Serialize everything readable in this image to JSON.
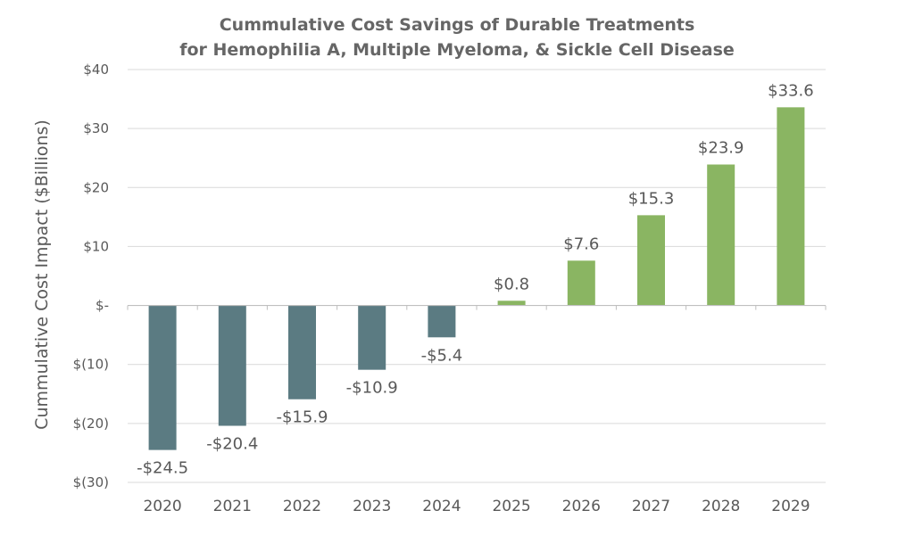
{
  "chart_data": {
    "type": "bar",
    "title_lines": [
      "Cummulative Cost Savings of Durable Treatments",
      "for Hemophilia A, Multiple Myeloma, & Sickle Cell Disease"
    ],
    "xlabel": "",
    "ylabel": "Cummulative Cost Impact ($Billions)",
    "categories": [
      "2020",
      "2021",
      "2022",
      "2023",
      "2024",
      "2025",
      "2026",
      "2027",
      "2028",
      "2029"
    ],
    "values": [
      -24.5,
      -20.4,
      -15.9,
      -10.9,
      -5.4,
      0.8,
      7.6,
      15.3,
      23.9,
      33.6
    ],
    "data_labels": [
      "-$24.5",
      "-$20.4",
      "-$15.9",
      "-$10.9",
      "-$5.4",
      "$0.8",
      "$7.6",
      "$15.3",
      "$23.9",
      "$33.6"
    ],
    "ylim": [
      -30,
      40
    ],
    "yticks": [
      40,
      30,
      20,
      10,
      0,
      -10,
      -20,
      -30
    ],
    "ytick_labels": [
      "$40",
      "$30",
      "$20",
      "$10",
      "$-",
      "$(10)",
      "$(20)",
      "$(30)"
    ],
    "grid": true,
    "legend": "none",
    "colors": {
      "negative": "#5b7b82",
      "positive": "#8ab562",
      "grid": "#d9d9d9",
      "axis": "#bfbfbf",
      "text": "#595959",
      "title": "#666666"
    }
  }
}
